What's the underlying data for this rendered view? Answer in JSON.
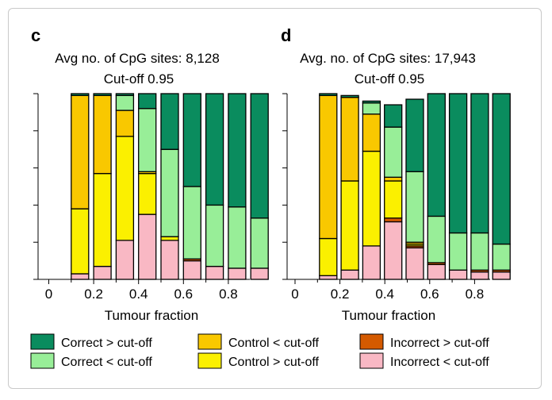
{
  "legend": [
    {
      "key": "correct_gt",
      "label": "Correct > cut-off",
      "color": "#0a8c5e"
    },
    {
      "key": "correct_lt",
      "label": "Correct < cut-off",
      "color": "#98ee98"
    },
    {
      "key": "control_lt",
      "label": "Control < cut-off",
      "color": "#f9c800"
    },
    {
      "key": "control_gt",
      "label": "Control > cut-off",
      "color": "#fbf000"
    },
    {
      "key": "incorrect_gt",
      "label": "Incorrect > cut-off",
      "color": "#d45a00"
    },
    {
      "key": "incorrect_lt",
      "label": "Incorrect < cut-off",
      "color": "#f9b8c4"
    }
  ],
  "chart_data": [
    {
      "type": "bar",
      "stacked": true,
      "panel": "c",
      "title": "Avg no. of CpG sites: 8,128",
      "subtitle": "Cut-off 0.95",
      "xlabel": "Tumour fraction",
      "ylabel": "",
      "x_ticks": [
        "0",
        "0.2",
        "0.4",
        "0.6",
        "0.8"
      ],
      "categories": [
        0,
        0.1,
        0.2,
        0.3,
        0.4,
        0.5,
        0.6,
        0.7,
        0.8,
        0.9
      ],
      "ylim": [
        0,
        1
      ],
      "series": [
        {
          "key": "incorrect_lt",
          "values": [
            0,
            0.03,
            0.07,
            0.21,
            0.35,
            0.21,
            0.1,
            0.07,
            0.06,
            0.06
          ]
        },
        {
          "key": "incorrect_gt",
          "values": [
            0,
            0,
            0,
            0,
            0,
            0,
            0.01,
            0,
            0,
            0
          ]
        },
        {
          "key": "control_gt",
          "values": [
            0,
            0.35,
            0.5,
            0.56,
            0.22,
            0.02,
            0,
            0,
            0,
            0
          ]
        },
        {
          "key": "control_lt",
          "values": [
            0,
            0.61,
            0.42,
            0.14,
            0.01,
            0,
            0,
            0,
            0,
            0
          ]
        },
        {
          "key": "correct_lt",
          "values": [
            0,
            0,
            0,
            0.08,
            0.34,
            0.47,
            0.39,
            0.33,
            0.33,
            0.27
          ]
        },
        {
          "key": "correct_gt",
          "values": [
            0,
            0.01,
            0.01,
            0.01,
            0.08,
            0.3,
            0.5,
            0.6,
            0.61,
            0.67
          ]
        }
      ]
    },
    {
      "type": "bar",
      "stacked": true,
      "panel": "d",
      "title": "Avg. no. of CpG sites: 17,943",
      "subtitle": "Cut-off 0.95",
      "xlabel": "Tumour fraction",
      "ylabel": "",
      "x_ticks": [
        "0",
        "0.2",
        "0.4",
        "0.6",
        "0.8"
      ],
      "categories": [
        0,
        0.1,
        0.2,
        0.3,
        0.4,
        0.5,
        0.6,
        0.7,
        0.8,
        0.9
      ],
      "ylim": [
        0,
        1
      ],
      "series": [
        {
          "key": "incorrect_lt",
          "values": [
            0,
            0.02,
            0.05,
            0.18,
            0.31,
            0.17,
            0.08,
            0.05,
            0.04,
            0.04
          ]
        },
        {
          "key": "incorrect_gt",
          "values": [
            0,
            0,
            0,
            0,
            0.02,
            0.01,
            0.01,
            0,
            0.01,
            0.01
          ]
        },
        {
          "key": "control_gt",
          "values": [
            0,
            0.2,
            0.48,
            0.51,
            0.2,
            0.01,
            0,
            0,
            0,
            0
          ]
        },
        {
          "key": "control_lt",
          "values": [
            0,
            0.77,
            0.45,
            0.2,
            0.02,
            0.01,
            0,
            0,
            0,
            0
          ]
        },
        {
          "key": "correct_lt",
          "values": [
            0,
            0,
            0,
            0.06,
            0.27,
            0.38,
            0.25,
            0.2,
            0.2,
            0.14
          ]
        },
        {
          "key": "correct_gt",
          "values": [
            0,
            0.01,
            0.01,
            0.01,
            0.12,
            0.39,
            0.66,
            0.75,
            0.75,
            0.81
          ]
        }
      ]
    }
  ]
}
